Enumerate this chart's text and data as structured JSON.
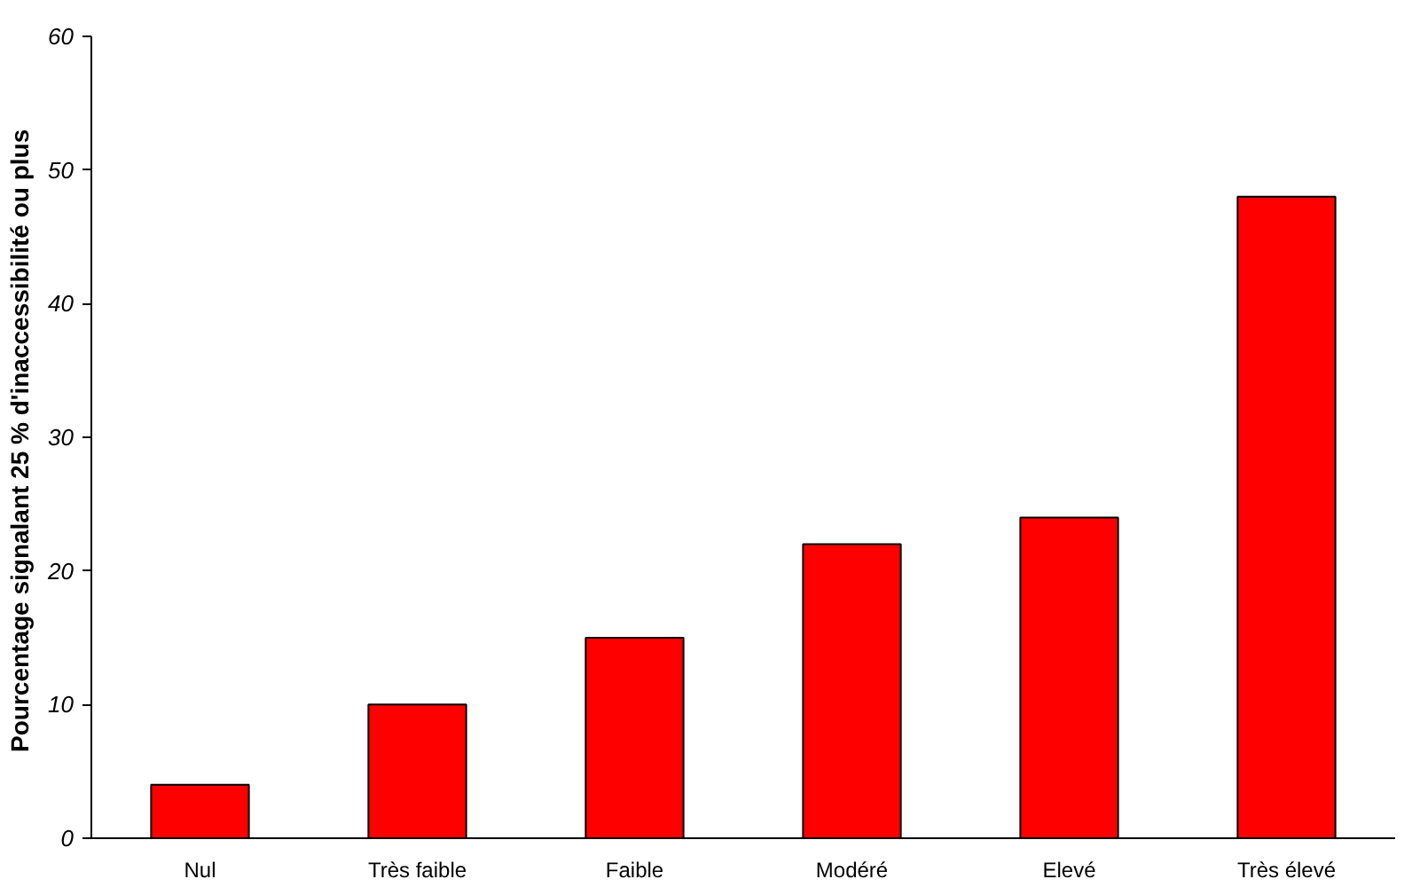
{
  "chart_data": {
    "type": "bar",
    "ylabel": "Pourcentage signalant 25 %  d'inaccessibilité ou plus",
    "categories": [
      "Nul",
      "Très faible",
      "Faible",
      "Modéré",
      "Elevé",
      "Très élevé"
    ],
    "values": [
      4,
      10,
      15,
      22,
      24,
      48
    ],
    "color": "#ff0000",
    "ylim": [
      0,
      60
    ],
    "yticks": [
      0,
      10,
      20,
      30,
      40,
      50,
      60
    ],
    "grid": false
  }
}
